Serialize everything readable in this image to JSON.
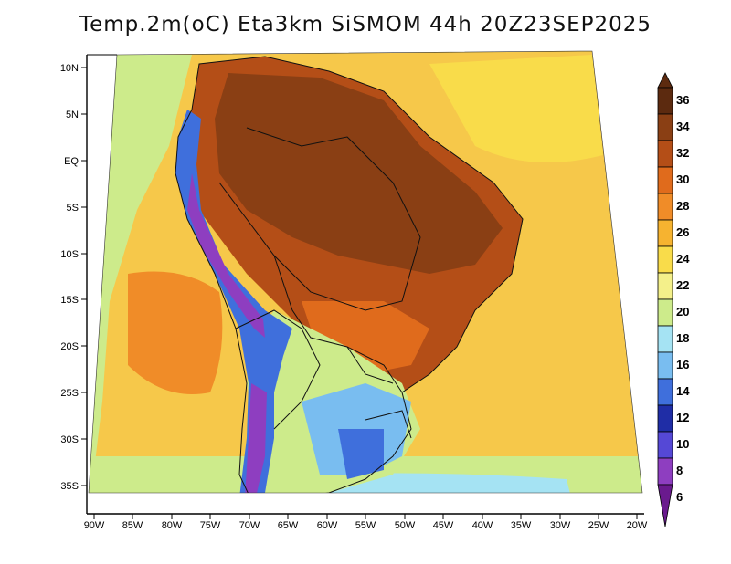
{
  "title": "Temp.2m(oC) Eta3km SiSMOM 44h 20Z23SEP2025",
  "map": {
    "lat_ticks": [
      "10N",
      "5N",
      "EQ",
      "5S",
      "10S",
      "15S",
      "20S",
      "25S",
      "30S",
      "35S"
    ],
    "lon_ticks": [
      "90W",
      "85W",
      "80W",
      "75W",
      "70W",
      "65W",
      "60W",
      "55W",
      "50W",
      "45W",
      "40W",
      "35W",
      "30W",
      "25W",
      "20W"
    ]
  },
  "colorbar": {
    "labels": [
      "36",
      "34",
      "32",
      "30",
      "28",
      "26",
      "24",
      "22",
      "20",
      "18",
      "16",
      "14",
      "12",
      "10",
      "8",
      "6"
    ],
    "colors": [
      "#5c2a0f",
      "#8a3f14",
      "#b44e17",
      "#e06b1c",
      "#f08c28",
      "#f6b330",
      "#f9dc4a",
      "#f4f08a",
      "#cdeb8b",
      "#a5e3f3",
      "#79bdf0",
      "#3f6fdc",
      "#1f2da6",
      "#5548d6",
      "#8e3ec0",
      "#6a1a8e"
    ]
  },
  "colors": {
    "ocean_warm": "#f4b23a",
    "ocean_mid": "#f6c84a",
    "land_hot": "#8a3f14",
    "andes_cold": "#3f6fdc"
  }
}
